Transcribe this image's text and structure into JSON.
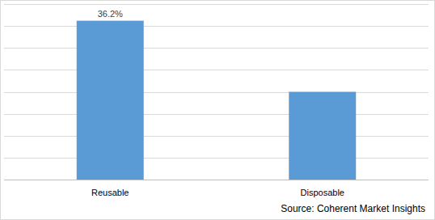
{
  "chart_data": {
    "type": "bar",
    "categories": [
      "Reusable",
      "Disposable"
    ],
    "values": [
      36.2,
      20
    ],
    "value_labels": [
      "36.2%",
      null
    ],
    "color": "#5b9bd5",
    "ylim": [
      0,
      40
    ],
    "yticks": [
      0,
      5,
      10,
      15,
      20,
      25,
      30,
      35,
      40
    ],
    "grid": true,
    "tick_labels": "x",
    "annotation": "Source: Coherent Market Insights"
  }
}
